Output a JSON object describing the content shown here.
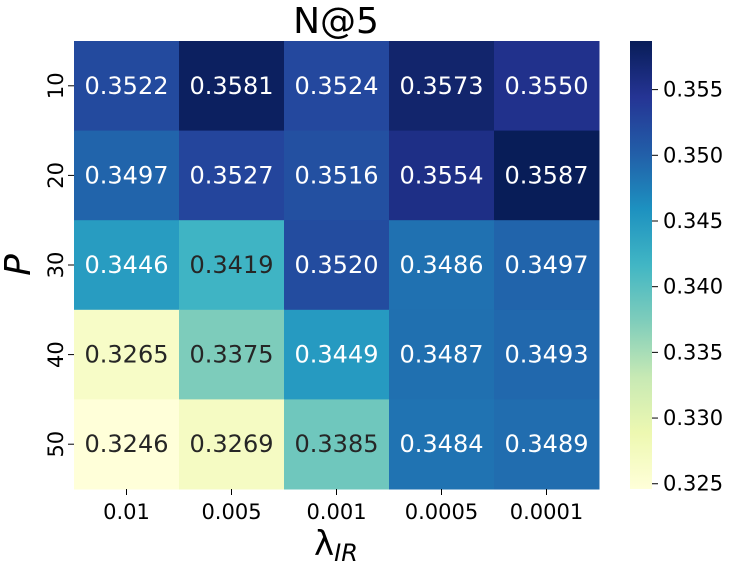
{
  "chart_data": {
    "type": "heatmap",
    "title": "N@5",
    "xlabel": "λ",
    "xlabel_subscript": "IR",
    "ylabel": "P",
    "x_categories": [
      "0.01",
      "0.005",
      "0.001",
      "0.0005",
      "0.0001"
    ],
    "y_categories": [
      "10",
      "20",
      "30",
      "40",
      "50"
    ],
    "values": [
      [
        0.3522,
        0.3581,
        0.3524,
        0.3573,
        0.355
      ],
      [
        0.3497,
        0.3527,
        0.3516,
        0.3554,
        0.3587
      ],
      [
        0.3446,
        0.3419,
        0.352,
        0.3486,
        0.3497
      ],
      [
        0.3265,
        0.3375,
        0.3449,
        0.3487,
        0.3493
      ],
      [
        0.3246,
        0.3269,
        0.3385,
        0.3484,
        0.3489
      ]
    ],
    "value_labels": [
      [
        "0.3522",
        "0.3581",
        "0.3524",
        "0.3573",
        "0.3550"
      ],
      [
        "0.3497",
        "0.3527",
        "0.3516",
        "0.3554",
        "0.3587"
      ],
      [
        "0.3446",
        "0.3419",
        "0.3520",
        "0.3486",
        "0.3497"
      ],
      [
        "0.3265",
        "0.3375",
        "0.3449",
        "0.3487",
        "0.3493"
      ],
      [
        "0.3246",
        "0.3269",
        "0.3385",
        "0.3484",
        "0.3489"
      ]
    ],
    "colorbar": {
      "vmin": 0.3246,
      "vmax": 0.3587,
      "ticks": [
        0.325,
        0.33,
        0.335,
        0.34,
        0.345,
        0.35,
        0.355
      ],
      "tick_labels": [
        "0.325",
        "0.330",
        "0.335",
        "0.340",
        "0.345",
        "0.350",
        "0.355"
      ]
    },
    "colormap": "YlGnBu",
    "colormap_stops": [
      "#ffffd9",
      "#edf8b1",
      "#c7e9b4",
      "#7fcdbb",
      "#41b6c4",
      "#1d91c0",
      "#225ea8",
      "#253494",
      "#081d58"
    ],
    "annotation_dark_color": "#262626",
    "annotation_light_color": "#ffffff"
  }
}
